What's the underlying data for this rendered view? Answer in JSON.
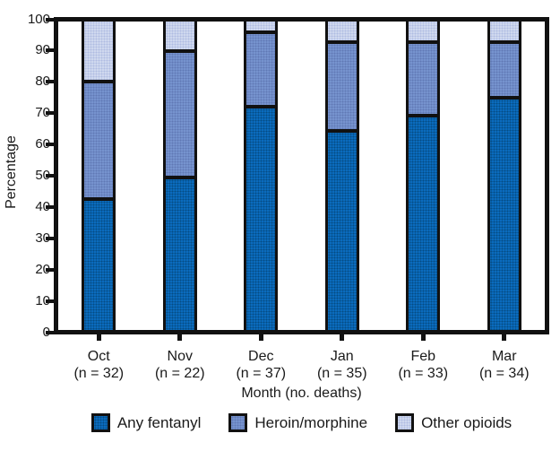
{
  "figure": {
    "background": "#ffffff",
    "frame_color": "#111111",
    "text_color": "#1a1a1a"
  },
  "chart_data": {
    "type": "bar",
    "stacked": true,
    "title": "",
    "xlabel": "Month (no. deaths)",
    "ylabel": "Percentage",
    "ylim": [
      0,
      100
    ],
    "yticks": [
      100,
      90,
      80,
      70,
      60,
      50,
      40,
      30,
      20,
      10,
      0
    ],
    "grid": false,
    "legend_position": "bottom",
    "categories": [
      "Oct",
      "Nov",
      "Dec",
      "Jan",
      "Feb",
      "Mar"
    ],
    "category_sublabels": [
      "(n = 32)",
      "(n = 22)",
      "(n = 37)",
      "(n = 35)",
      "(n = 33)",
      "(n = 34)"
    ],
    "n_deaths": [
      32,
      22,
      37,
      35,
      33,
      34
    ],
    "series": [
      {
        "name": "Any fentanyl",
        "color": "#0b6bbd",
        "dot_color": "rgba(0,45,75,0.5)",
        "values": [
          43,
          50,
          73,
          65,
          70,
          76
        ]
      },
      {
        "name": "Heroin/morphine",
        "color": "#7693ce",
        "dot_color": "rgba(75,95,155,0.5)",
        "values": [
          38,
          41,
          24,
          29,
          24,
          18
        ]
      },
      {
        "name": "Other opioids",
        "color": "#cfd8ee",
        "dot_color": "rgba(150,165,215,0.55)",
        "values": [
          19,
          9,
          3,
          6,
          6,
          6
        ]
      }
    ]
  }
}
